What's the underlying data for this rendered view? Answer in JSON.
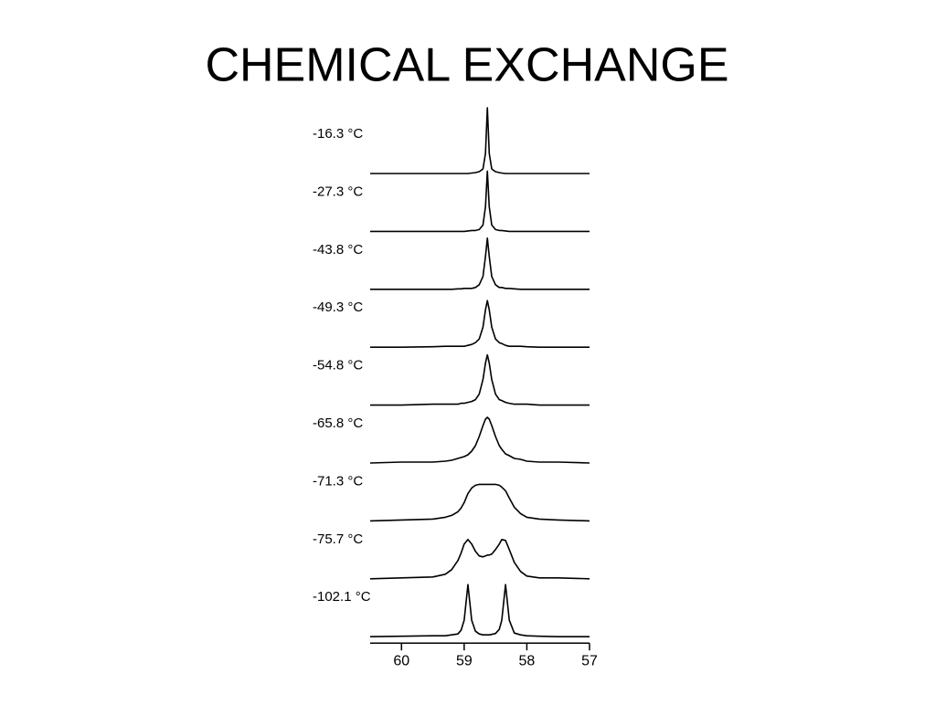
{
  "chart_data": {
    "type": "line",
    "title": "CHEMICAL EXCHANGE",
    "x": [
      60.5,
      60,
      59.5,
      59.3,
      59.2,
      59.1,
      59.05,
      59.0,
      58.94,
      58.88,
      58.82,
      58.76,
      58.7,
      58.66,
      58.63,
      58.6,
      58.56,
      58.5,
      58.44,
      58.4,
      58.34,
      58.28,
      58.2,
      58.1,
      58.0,
      57.8,
      57.5,
      57.0
    ],
    "xlim": [
      60.5,
      57
    ],
    "xticks": [
      60,
      59,
      58,
      57
    ],
    "ylim": [
      0,
      80
    ],
    "series": [
      {
        "name": "-16.3 °C",
        "color": "#000000",
        "values": [
          0,
          0,
          0,
          0,
          0,
          0,
          0,
          0,
          0,
          0.5,
          1,
          2,
          5,
          22,
          72,
          22,
          5,
          2,
          1,
          0.5,
          0,
          0,
          0,
          0,
          0,
          0,
          0,
          0
        ]
      },
      {
        "name": "-27.3 °C",
        "color": "#000000",
        "values": [
          0,
          0,
          0,
          0,
          0,
          0,
          0,
          0,
          0.5,
          1,
          1,
          2,
          7,
          27,
          66,
          27,
          7,
          2,
          1,
          1,
          0.5,
          0,
          0,
          0,
          0,
          0,
          0,
          0
        ]
      },
      {
        "name": "-43.8 °C",
        "color": "#000000",
        "values": [
          0,
          0,
          0,
          0,
          0,
          0.5,
          0.5,
          1,
          1,
          1,
          2,
          5,
          14,
          36,
          56,
          36,
          14,
          5,
          2,
          2,
          1,
          1,
          0.5,
          0,
          0,
          0,
          0,
          0
        ]
      },
      {
        "name": "-49.3 °C",
        "color": "#000000",
        "values": [
          0,
          0,
          0.5,
          1,
          1,
          1,
          1,
          1,
          2,
          3,
          5,
          9,
          22,
          41,
          51,
          41,
          22,
          9,
          5,
          4,
          2,
          1,
          1,
          1,
          0.5,
          0,
          0,
          0
        ]
      },
      {
        "name": "-54.8 °C",
        "color": "#000000",
        "values": [
          0,
          0,
          1,
          1,
          1,
          1,
          2,
          2,
          3,
          4,
          6,
          12,
          28,
          46,
          55,
          46,
          28,
          12,
          6,
          5,
          3,
          2,
          1,
          1,
          1,
          0,
          0,
          0
        ]
      },
      {
        "name": "-65.8 °C",
        "color": "#000000",
        "values": [
          0,
          1,
          1,
          2,
          3,
          5,
          6,
          7,
          9,
          13,
          19,
          29,
          41,
          48,
          50,
          48,
          41,
          29,
          19,
          15,
          10,
          8,
          5,
          4,
          2,
          1,
          1,
          0
        ]
      },
      {
        "name": "-71.3 °C",
        "color": "#000000",
        "values": [
          0,
          1,
          2,
          4,
          6,
          10,
          14,
          20,
          30,
          36,
          39,
          40,
          40,
          40,
          40,
          40,
          40,
          40,
          39,
          37,
          33,
          25,
          15,
          8,
          4,
          2,
          1,
          0
        ]
      },
      {
        "name": "-75.7 °C",
        "color": "#000000",
        "values": [
          0,
          1,
          2,
          5,
          10,
          20,
          28,
          38,
          43,
          38,
          30,
          25,
          24,
          25,
          26,
          26,
          27,
          32,
          38,
          43,
          42,
          32,
          18,
          8,
          3,
          1,
          1,
          0
        ]
      },
      {
        "name": "-102.1 °C",
        "color": "#000000",
        "values": [
          0,
          0.5,
          1,
          1,
          2,
          3,
          7,
          18,
          57,
          18,
          6,
          3,
          2,
          2,
          2,
          2,
          2.5,
          3.5,
          8,
          18,
          57,
          18,
          4,
          2,
          1,
          0.5,
          0,
          0
        ]
      }
    ]
  }
}
